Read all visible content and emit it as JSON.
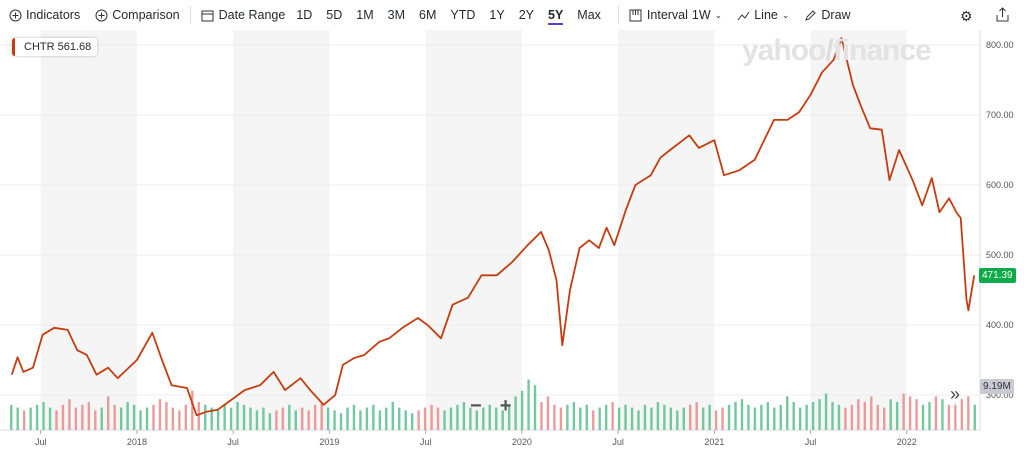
{
  "toolbar": {
    "indicators": "Indicators",
    "comparison": "Comparison",
    "date_range": "Date Range",
    "ranges": [
      "1D",
      "5D",
      "1M",
      "3M",
      "6M",
      "YTD",
      "1Y",
      "2Y",
      "5Y",
      "Max"
    ],
    "active_range": "5Y",
    "interval_label": "Interval",
    "interval_value": "1W",
    "line": "Line",
    "draw": "Draw"
  },
  "legend": {
    "symbol": "CHTR",
    "value": "561.68"
  },
  "watermark": "yahoo!finance",
  "current_price": "471.39",
  "current_volume": "9.19M",
  "zoom": {
    "minus": "−",
    "plus": "+"
  },
  "colors": {
    "line": "#c53d0f",
    "up": "#5bbf8e",
    "down": "#e88a8a",
    "price_badge": "#0faa4a"
  },
  "chart_data": {
    "type": "line",
    "title": "CHTR",
    "y_ticks": [
      "800.00",
      "700.00",
      "600.00",
      "500.00",
      "400.00",
      "300.00"
    ],
    "ylim": [
      300,
      800
    ],
    "x_ticks": [
      {
        "label": "Jul",
        "t": 2017.5
      },
      {
        "label": "2018",
        "t": 2018.0
      },
      {
        "label": "Jul",
        "t": 2018.5
      },
      {
        "label": "2019",
        "t": 2019.0
      },
      {
        "label": "Jul",
        "t": 2019.5
      },
      {
        "label": "2020",
        "t": 2020.0
      },
      {
        "label": "Jul",
        "t": 2020.5
      },
      {
        "label": "2021",
        "t": 2021.0
      },
      {
        "label": "Jul",
        "t": 2021.5
      },
      {
        "label": "2022",
        "t": 2022.0
      }
    ],
    "xlim": [
      2017.33,
      2022.37
    ],
    "series": [
      {
        "name": "CHTR",
        "points": [
          [
            2017.35,
            329
          ],
          [
            2017.38,
            354
          ],
          [
            2017.41,
            333
          ],
          [
            2017.46,
            339
          ],
          [
            2017.51,
            386
          ],
          [
            2017.57,
            396
          ],
          [
            2017.64,
            393
          ],
          [
            2017.69,
            364
          ],
          [
            2017.74,
            357
          ],
          [
            2017.79,
            329
          ],
          [
            2017.85,
            339
          ],
          [
            2017.9,
            324
          ],
          [
            2018.0,
            350
          ],
          [
            2018.08,
            389
          ],
          [
            2018.13,
            350
          ],
          [
            2018.18,
            314
          ],
          [
            2018.26,
            310
          ],
          [
            2018.31,
            271
          ],
          [
            2018.36,
            276
          ],
          [
            2018.42,
            279
          ],
          [
            2018.49,
            293
          ],
          [
            2018.56,
            307
          ],
          [
            2018.64,
            314
          ],
          [
            2018.71,
            333
          ],
          [
            2018.77,
            307
          ],
          [
            2018.85,
            324
          ],
          [
            2018.9,
            307
          ],
          [
            2018.97,
            286
          ],
          [
            2019.03,
            300
          ],
          [
            2019.07,
            343
          ],
          [
            2019.13,
            353
          ],
          [
            2019.18,
            357
          ],
          [
            2019.26,
            376
          ],
          [
            2019.31,
            381
          ],
          [
            2019.38,
            396
          ],
          [
            2019.46,
            410
          ],
          [
            2019.51,
            400
          ],
          [
            2019.58,
            381
          ],
          [
            2019.64,
            429
          ],
          [
            2019.72,
            439
          ],
          [
            2019.79,
            471
          ],
          [
            2019.87,
            471
          ],
          [
            2019.95,
            490
          ],
          [
            2020.03,
            514
          ],
          [
            2020.1,
            533
          ],
          [
            2020.14,
            507
          ],
          [
            2020.18,
            464
          ],
          [
            2020.21,
            371
          ],
          [
            2020.25,
            450
          ],
          [
            2020.3,
            510
          ],
          [
            2020.35,
            521
          ],
          [
            2020.4,
            510
          ],
          [
            2020.44,
            539
          ],
          [
            2020.48,
            514
          ],
          [
            2020.54,
            564
          ],
          [
            2020.59,
            600
          ],
          [
            2020.67,
            614
          ],
          [
            2020.72,
            639
          ],
          [
            2020.77,
            650
          ],
          [
            2020.87,
            671
          ],
          [
            2020.92,
            653
          ],
          [
            2021.0,
            664
          ],
          [
            2021.05,
            614
          ],
          [
            2021.13,
            621
          ],
          [
            2021.21,
            636
          ],
          [
            2021.31,
            693
          ],
          [
            2021.38,
            693
          ],
          [
            2021.44,
            704
          ],
          [
            2021.5,
            729
          ],
          [
            2021.56,
            761
          ],
          [
            2021.62,
            779
          ],
          [
            2021.66,
            810
          ],
          [
            2021.72,
            743
          ],
          [
            2021.76,
            714
          ],
          [
            2021.81,
            681
          ],
          [
            2021.87,
            679
          ],
          [
            2021.91,
            607
          ],
          [
            2021.96,
            650
          ],
          [
            2022.03,
            607
          ],
          [
            2022.08,
            571
          ],
          [
            2022.13,
            610
          ],
          [
            2022.17,
            561
          ],
          [
            2022.22,
            581
          ],
          [
            2022.26,
            560
          ],
          [
            2022.28,
            553
          ],
          [
            2022.31,
            436
          ],
          [
            2022.32,
            421
          ],
          [
            2022.35,
            471
          ]
        ]
      }
    ],
    "volume_millions": [
      9,
      8,
      7,
      8,
      9,
      10,
      8,
      7,
      9,
      11,
      8,
      9,
      10,
      7,
      8,
      12,
      9,
      8,
      10,
      9,
      7,
      8,
      9,
      11,
      10,
      8,
      7,
      9,
      14,
      10,
      9,
      8,
      7,
      9,
      8,
      10,
      9,
      8,
      7,
      8,
      6,
      7,
      8,
      9,
      7,
      8,
      7,
      9,
      10,
      8,
      7,
      6,
      8,
      9,
      7,
      8,
      9,
      7,
      8,
      10,
      8,
      7,
      6,
      7,
      8,
      9,
      8,
      7,
      8,
      9,
      10,
      8,
      7,
      8,
      9,
      8,
      7,
      9,
      12,
      14,
      18,
      16,
      10,
      12,
      9,
      8,
      9,
      10,
      8,
      9,
      7,
      8,
      9,
      10,
      8,
      9,
      8,
      7,
      9,
      8,
      10,
      9,
      8,
      7,
      8,
      9,
      10,
      8,
      9,
      7,
      8,
      9,
      10,
      11,
      9,
      8,
      9,
      10,
      8,
      9,
      12,
      10,
      8,
      9,
      10,
      11,
      13,
      10,
      9,
      8,
      9,
      11,
      10,
      12,
      9,
      8,
      11,
      10,
      13,
      12,
      11,
      9,
      10,
      12,
      11,
      9,
      10,
      11,
      12,
      9
    ],
    "volume_max": 25
  }
}
